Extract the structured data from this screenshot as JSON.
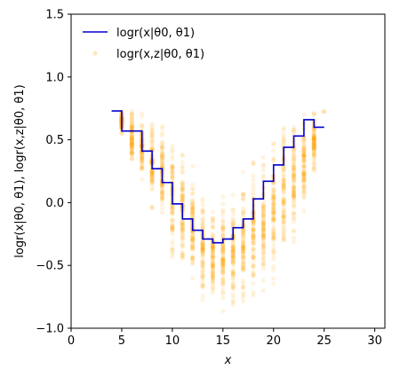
{
  "chart_data": {
    "type": "scatter",
    "xlabel": "x",
    "ylabel": "logr(x|θ0, θ1), logr(x,z|θ0, θ1)",
    "xlim": [
      0,
      31
    ],
    "ylim": [
      -1.0,
      1.5
    ],
    "xticks": [
      "0",
      "5",
      "10",
      "15",
      "20",
      "25",
      "30"
    ],
    "yticks": [
      "−1.0",
      "−0.5",
      "0.0",
      "0.5",
      "1.0",
      "1.5"
    ],
    "legend_position": "upper-left",
    "series": [
      {
        "name": "logr(x|θ0, θ1)",
        "kind": "step",
        "color": "#0000cc",
        "x": [
          4,
          5,
          6,
          7,
          8,
          9,
          10,
          11,
          12,
          13,
          14,
          15,
          16,
          17,
          18,
          19,
          20,
          21,
          22,
          23,
          24,
          25
        ],
        "y": [
          0.73,
          0.57,
          0.57,
          0.41,
          0.27,
          0.16,
          -0.01,
          -0.13,
          -0.22,
          -0.29,
          -0.32,
          -0.29,
          -0.2,
          -0.13,
          0.03,
          0.17,
          0.3,
          0.44,
          0.53,
          0.66,
          0.6,
          0.6
        ]
      },
      {
        "name": "logr(x,z|θ0, θ1)",
        "kind": "scatter",
        "color": "#ffa500",
        "columns": [
          {
            "x": 5,
            "min": 0.55,
            "max": 0.75
          },
          {
            "x": 6,
            "min": 0.3,
            "max": 0.75
          },
          {
            "x": 7,
            "min": 0.15,
            "max": 0.73
          },
          {
            "x": 8,
            "min": -0.1,
            "max": 0.72
          },
          {
            "x": 9,
            "min": -0.25,
            "max": 0.68
          },
          {
            "x": 10,
            "min": -0.5,
            "max": 0.58
          },
          {
            "x": 11,
            "min": -0.62,
            "max": 0.45
          },
          {
            "x": 12,
            "min": -0.72,
            "max": 0.3
          },
          {
            "x": 13,
            "min": -0.8,
            "max": 0.1
          },
          {
            "x": 14,
            "min": -0.85,
            "max": -0.05
          },
          {
            "x": 15,
            "min": -0.9,
            "max": 0.05
          },
          {
            "x": 16,
            "min": -0.92,
            "max": 0.15
          },
          {
            "x": 17,
            "min": -0.9,
            "max": 0.25
          },
          {
            "x": 18,
            "min": -0.85,
            "max": 0.35
          },
          {
            "x": 19,
            "min": -0.75,
            "max": 0.4
          },
          {
            "x": 20,
            "min": -0.65,
            "max": 0.5
          },
          {
            "x": 21,
            "min": -0.5,
            "max": 0.7
          },
          {
            "x": 22,
            "min": -0.35,
            "max": 0.72
          },
          {
            "x": 23,
            "min": -0.15,
            "max": 0.75
          },
          {
            "x": 24,
            "min": 0.25,
            "max": 0.75
          },
          {
            "x": 25,
            "min": 0.72,
            "max": 0.73
          }
        ]
      }
    ]
  },
  "legend": {
    "line_label": "logr(x|θ0, θ1)",
    "scatter_label": "logr(x,z|θ0, θ1)"
  }
}
